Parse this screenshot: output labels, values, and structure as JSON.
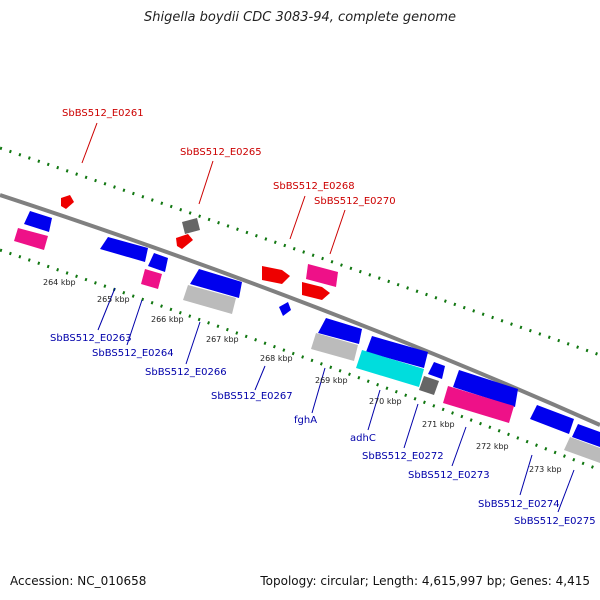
{
  "title": "Shigella boydii CDC 3083-94, complete genome",
  "footer": {
    "accession": "Accession: NC_010658",
    "summary": "Topology: circular; Length: 4,615,997 bp; Genes: 4,415"
  },
  "ticks": [
    "264 kbp",
    "265 kbp",
    "266 kbp",
    "267 kbp",
    "268 kbp",
    "269 kbp",
    "270 kbp",
    "271 kbp",
    "272 kbp",
    "273 kbp"
  ],
  "top_labels": [
    "SbBS512_E0261",
    "SbBS512_E0265",
    "SbBS512_E0268",
    "SbBS512_E0270"
  ],
  "bottom_labels": [
    "SbBS512_E0263",
    "SbBS512_E0264",
    "SbBS512_E0266",
    "SbBS512_E0267",
    "fghA",
    "adhC",
    "SbBS512_E0272",
    "SbBS512_E0273",
    "SbBS512_E0274",
    "SbBS512_E0275"
  ],
  "colors": {
    "red_label": "#cc0000",
    "blue_label": "#0000aa",
    "blue_gene": "#0000ee",
    "red_gene": "#ee0000",
    "pink_gene": "#ee1188",
    "gray_gene": "#bbbbbb",
    "dark_gray_gene": "#666666",
    "cyan_gene": "#00dddd",
    "backbone": "#808080",
    "tick_green": "#117711"
  }
}
